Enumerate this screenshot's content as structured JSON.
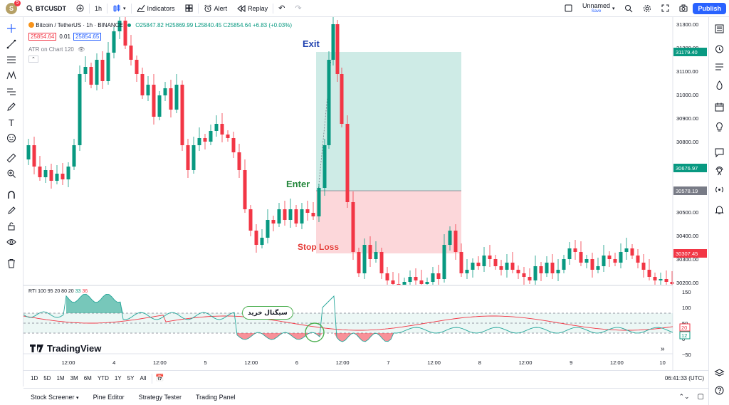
{
  "toolbar": {
    "avatar_letter": "S",
    "notification_count": "5",
    "symbol": "BTCUSDT",
    "interval": "1h",
    "indicators_label": "Indicators",
    "alert_label": "Alert",
    "replay_label": "Replay",
    "layout_name": "Unnamed",
    "layout_status": "Save",
    "publish_label": "Publish"
  },
  "legend": {
    "title": "Bitcoin / TetherUS · 1h · BINANCE",
    "ohlc": "O25847.82 H25869.99 L25840.45 C25854.64 +6.83 (+0.03%)",
    "bid": "25854.64",
    "spread": "0.01",
    "ask": "25854.65",
    "atr": "ATR on Chart 120"
  },
  "price_axis": {
    "labels": [
      "31300.00",
      "31200.00",
      "31100.00",
      "31000.00",
      "30900.00",
      "30800.00",
      "30700.00",
      "30600.00",
      "30500.00",
      "30400.00",
      "30300.00",
      "30200.00"
    ],
    "tags": [
      {
        "text": "31179.40",
        "color": "#089981"
      },
      {
        "text": "30676.97",
        "color": "#089981"
      },
      {
        "text": "30578.19",
        "color": "#787b86"
      },
      {
        "text": "30307.45",
        "color": "#f23645"
      }
    ]
  },
  "oscillator": {
    "legend_name": "RTI 100 95 20 80 20",
    "legend_v1": "33",
    "legend_v2": "36",
    "axis_labels": [
      "150",
      "100",
      "50",
      "0",
      "−50"
    ],
    "tag_20": "20",
    "tag_12": "12"
  },
  "annotations": {
    "exit": "Exit",
    "enter": "Enter",
    "stop_loss": "Stop Loss",
    "buy_signal": "سیگنال خرید"
  },
  "watermark": "TradingView",
  "time_axis": [
    "12:00",
    "4",
    "12:00",
    "5",
    "12:00",
    "6",
    "12:00",
    "7",
    "12:00",
    "8",
    "12:00",
    "9",
    "12:00",
    "10"
  ],
  "bottom": {
    "ranges": [
      "1D",
      "5D",
      "1M",
      "3M",
      "6M",
      "YTD",
      "1Y",
      "5Y",
      "All"
    ],
    "clock": "06:41:33 (UTC)"
  },
  "tabs": [
    "Stock Screener",
    "Pine Editor",
    "Strategy Tester",
    "Trading Panel"
  ],
  "colors": {
    "up": "#089981",
    "down": "#f23645",
    "accent": "#2962ff"
  }
}
